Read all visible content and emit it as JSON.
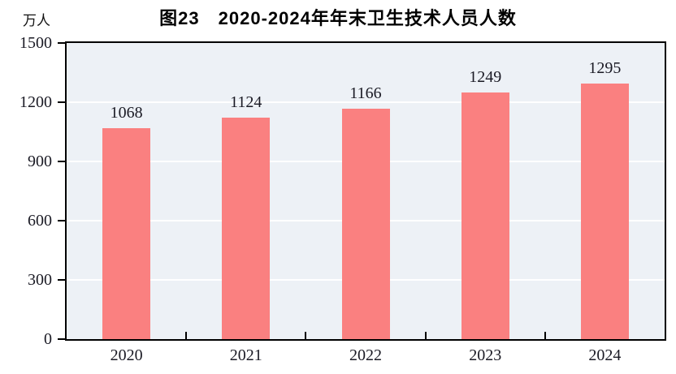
{
  "figure": {
    "title": "图23　2020-2024年年末卫生技术人员人数",
    "unit_label": "万人"
  },
  "chart_data": {
    "type": "bar",
    "title": "图23　2020-2024年年末卫生技术人员人数",
    "ylabel": "万人",
    "categories": [
      "2020",
      "2021",
      "2022",
      "2023",
      "2024"
    ],
    "values": [
      1068,
      1124,
      1166,
      1249,
      1295
    ],
    "value_labels": [
      "1068",
      "1124",
      "1166",
      "1249",
      "1295"
    ],
    "ylim": [
      0,
      1500
    ],
    "yticks": [
      0,
      300,
      600,
      900,
      1200,
      1500
    ],
    "grid": true,
    "legend": false,
    "colors": {
      "bar": "#FA8080",
      "plot_background": "#EDF1F6",
      "gridline": "#FFFFFF",
      "axis_border": "#000000",
      "text": "#1a1a24"
    }
  }
}
